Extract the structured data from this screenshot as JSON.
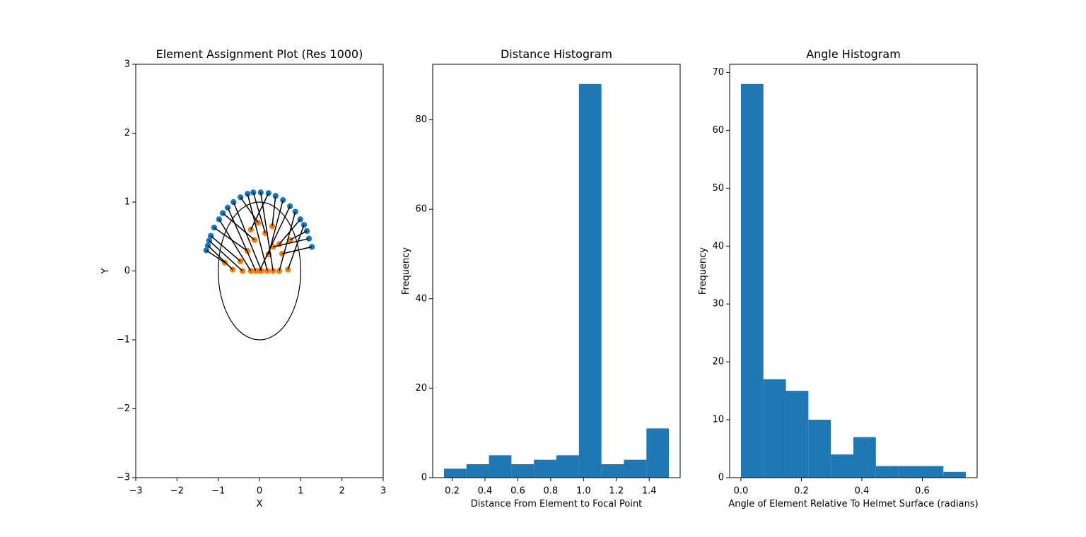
{
  "chart_data": [
    {
      "type": "scatter",
      "title": "Element Assignment Plot (Res 1000)",
      "xlabel": "X",
      "ylabel": "Y",
      "xlim": [
        -3,
        3
      ],
      "ylim": [
        -3,
        3
      ],
      "xticks": [
        {
          "value": -3,
          "label": "−3"
        },
        {
          "value": -2,
          "label": "−2"
        },
        {
          "value": -1,
          "label": "−1"
        },
        0,
        1,
        2,
        3
      ],
      "yticks": [
        {
          "value": -3,
          "label": "−3"
        },
        {
          "value": -2,
          "label": "−2"
        },
        {
          "value": -1,
          "label": "−1"
        },
        0,
        1,
        2,
        3
      ],
      "connect": true,
      "line_color": "#000000",
      "circle": {
        "cx": 0,
        "cy": 0,
        "r": 1,
        "color": "#000000"
      },
      "series": [
        {
          "color": "#1f77b4",
          "x": [
            -1.29,
            -1.25,
            -1.22,
            -1.18,
            -1.1,
            -0.98,
            -0.89,
            -0.77,
            -0.63,
            -0.46,
            -0.29,
            -0.15,
            0.03,
            0.22,
            0.39,
            0.57,
            0.74,
            0.87,
            0.99,
            1.08,
            1.15,
            1.2,
            1.27
          ],
          "values": [
            0.3,
            0.37,
            0.44,
            0.51,
            0.63,
            0.75,
            0.84,
            0.92,
            1.0,
            1.07,
            1.12,
            1.14,
            1.14,
            1.13,
            1.09,
            1.03,
            0.94,
            0.86,
            0.75,
            0.67,
            0.58,
            0.47,
            0.35
          ]
        },
        {
          "color": "#ff7f0e",
          "x": [
            -0.84,
            -0.65,
            -0.41,
            -0.46,
            -0.29,
            -0.21,
            -0.12,
            -0.09,
            0.05,
            -0.03,
            0.19,
            0.14,
            0.33,
            -0.21,
            0.31,
            0.22,
            0.0,
            0.48,
            0.48,
            0.69,
            0.74,
            0.33,
            0.55
          ],
          "values": [
            0.12,
            0.02,
            0.0,
            0.14,
            0.29,
            0.0,
            0.45,
            0.0,
            0.0,
            0.7,
            0.0,
            0.55,
            0.0,
            0.6,
            0.65,
            0.24,
            0.0,
            0.0,
            0.39,
            0.02,
            0.45,
            0.35,
            0.25
          ]
        }
      ]
    },
    {
      "type": "histogram",
      "title": "Distance Histogram",
      "xlabel": "Distance From Element to Focal Point",
      "ylabel": "Frequency",
      "color": "#1f77b4",
      "bins": [
        0.15,
        0.287,
        0.424,
        0.561,
        0.698,
        0.835,
        0.972,
        1.109,
        1.246,
        1.383,
        1.52
      ],
      "values": [
        2,
        3,
        5,
        3,
        4,
        5,
        88,
        3,
        4,
        11
      ],
      "xlim": [
        0.0815,
        1.5885
      ],
      "ylim": [
        0,
        92.4
      ],
      "xticks": [
        0.2,
        0.4,
        0.6,
        0.8,
        {
          "value": 1.0,
          "label": "1.0"
        },
        1.2,
        1.4
      ],
      "yticks": [
        0,
        20,
        40,
        60,
        80
      ]
    },
    {
      "type": "histogram",
      "title": "Angle Histogram",
      "xlabel": "Angle of Element Relative To Helmet Surface (radians)",
      "ylabel": "Frequency",
      "color": "#1f77b4",
      "bins": [
        0,
        0.0744,
        0.1488,
        0.2232,
        0.2976,
        0.372,
        0.4464,
        0.5208,
        0.5952,
        0.6696,
        0.744
      ],
      "values": [
        68,
        17,
        15,
        10,
        4,
        7,
        2,
        2,
        2,
        1
      ],
      "xlim": [
        -0.0372,
        0.7812
      ],
      "ylim": [
        0,
        71.4
      ],
      "xticks": [
        {
          "value": 0.0,
          "label": "0.0"
        },
        0.2,
        0.4,
        0.6
      ],
      "yticks": [
        0,
        10,
        20,
        30,
        40,
        50,
        60,
        70
      ]
    }
  ]
}
